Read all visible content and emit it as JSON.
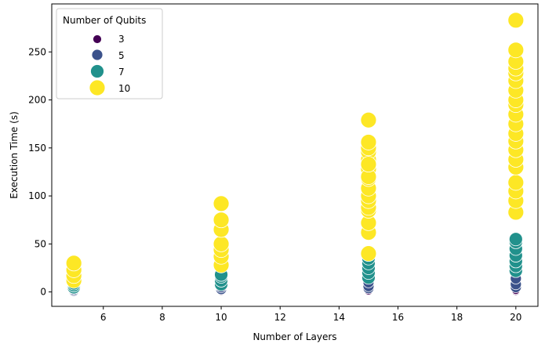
{
  "chart_data": {
    "type": "scatter",
    "title": "",
    "xlabel": "Number of Layers",
    "ylabel": "Execution Time (s)",
    "xlim": [
      4.25,
      20.75
    ],
    "ylim": [
      -15,
      300
    ],
    "xticks": [
      6,
      8,
      10,
      12,
      14,
      16,
      18,
      20
    ],
    "yticks": [
      0,
      50,
      100,
      150,
      200,
      250
    ],
    "grid": false,
    "legend": {
      "title": "Number of Qubits",
      "placement": "top-left",
      "entries": [
        "3",
        "5",
        "7",
        "10"
      ]
    },
    "series": [
      {
        "name": "3",
        "color": "#440154",
        "x": [
          5,
          5,
          10,
          10,
          15,
          15,
          15,
          20,
          20
        ],
        "y": [
          0.4,
          0.8,
          0.5,
          1.0,
          0.8,
          1.4,
          3.0,
          1.0,
          2.0
        ]
      },
      {
        "name": "5",
        "color": "#3b528b",
        "x": [
          5,
          5,
          5,
          10,
          10,
          10,
          15,
          15,
          15,
          15,
          20,
          20,
          20
        ],
        "y": [
          1.5,
          2.5,
          3.5,
          3,
          5,
          7,
          4,
          6,
          10,
          14,
          5,
          8,
          14
        ]
      },
      {
        "name": "7",
        "color": "#21918c",
        "x": [
          5,
          5,
          5,
          10,
          10,
          10,
          10,
          15,
          15,
          15,
          15,
          15,
          20,
          20,
          20,
          20,
          20,
          20,
          20
        ],
        "y": [
          5,
          7,
          9,
          8,
          12,
          16,
          18,
          15,
          20,
          25,
          30,
          35,
          22,
          27,
          32,
          38,
          45,
          52,
          55
        ]
      },
      {
        "name": "10",
        "color": "#fde725",
        "x": [
          5,
          5,
          5,
          5,
          10,
          10,
          10,
          10,
          10,
          10,
          10,
          15,
          15,
          15,
          15,
          15,
          15,
          15,
          15,
          15,
          15,
          15,
          15,
          15,
          15,
          15,
          15,
          15,
          20,
          20,
          20,
          20,
          20,
          20,
          20,
          20,
          20,
          20,
          20,
          20,
          20,
          20,
          20,
          20,
          20,
          20,
          20,
          20
        ],
        "y": [
          12,
          17,
          23,
          30,
          28,
          37,
          44,
          50,
          65,
          75,
          92,
          40,
          62,
          72,
          85,
          88,
          95,
          100,
          108,
          118,
          128,
          138,
          146,
          150,
          156,
          179,
          120,
          133,
          83,
          95,
          105,
          114,
          130,
          138,
          148,
          157,
          165,
          175,
          185,
          195,
          200,
          210,
          220,
          228,
          233,
          240,
          252,
          283
        ]
      }
    ]
  }
}
